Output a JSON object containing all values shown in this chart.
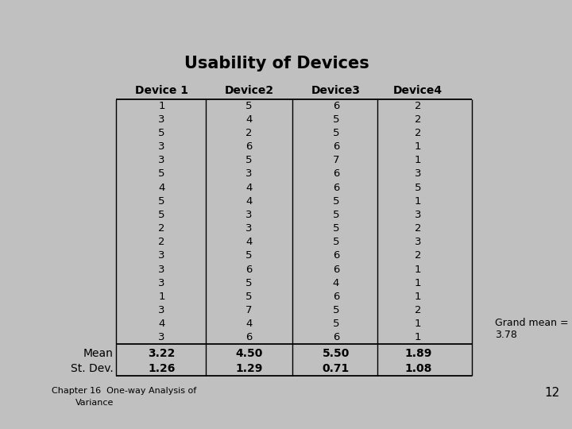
{
  "title": "Usability of Devices",
  "header": [
    "Device 1",
    "Device2",
    "Device3",
    "Device4"
  ],
  "data": [
    [
      1,
      5,
      6,
      2
    ],
    [
      3,
      4,
      5,
      2
    ],
    [
      5,
      2,
      5,
      2
    ],
    [
      3,
      6,
      6,
      1
    ],
    [
      3,
      5,
      7,
      1
    ],
    [
      5,
      3,
      6,
      3
    ],
    [
      4,
      4,
      6,
      5
    ],
    [
      5,
      4,
      5,
      1
    ],
    [
      5,
      3,
      5,
      3
    ],
    [
      2,
      3,
      5,
      2
    ],
    [
      2,
      4,
      5,
      3
    ],
    [
      3,
      5,
      6,
      2
    ],
    [
      3,
      6,
      6,
      1
    ],
    [
      3,
      5,
      4,
      1
    ],
    [
      1,
      5,
      6,
      1
    ],
    [
      3,
      7,
      5,
      2
    ],
    [
      4,
      4,
      5,
      1
    ],
    [
      3,
      6,
      6,
      1
    ]
  ],
  "row_labels": [
    "Mean",
    "St. Dev."
  ],
  "summary": [
    [
      "3.22",
      "4.50",
      "5.50",
      "1.89"
    ],
    [
      "1.26",
      "1.29",
      "0.71",
      "1.08"
    ]
  ],
  "grand_mean_text": "Grand mean =\n3.78",
  "page_label": "12",
  "chapter_line1": "Chapter 16  One-way Analysis of",
  "chapter_line2": "Variance",
  "bg_color": "#fffff0",
  "outer_bg": "#c0c0c0",
  "header_font_size": 10,
  "data_font_size": 9.5,
  "title_font_size": 15,
  "summary_font_size": 10
}
